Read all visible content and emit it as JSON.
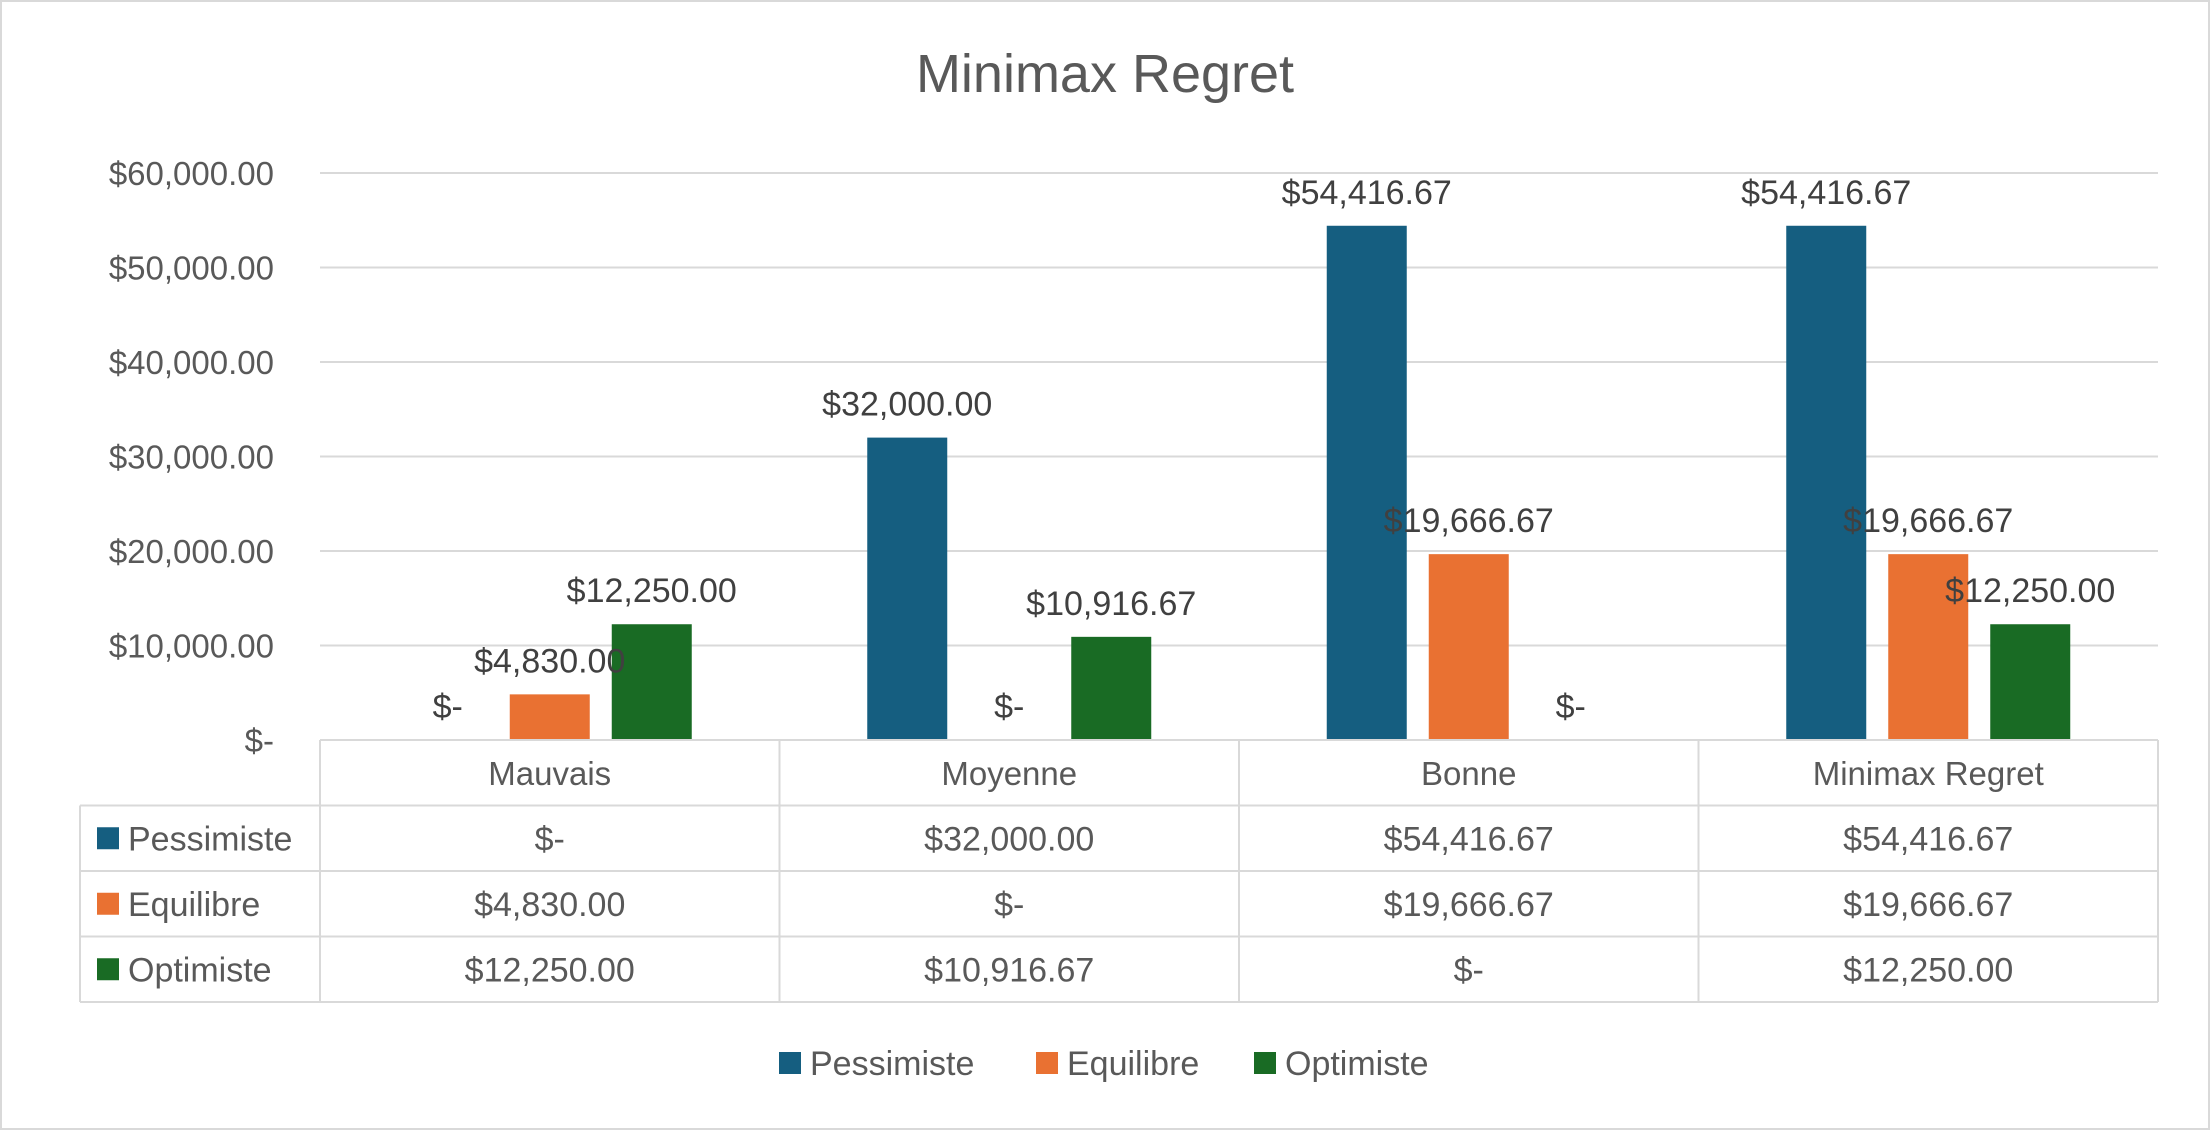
{
  "chart_data": {
    "type": "bar",
    "title": "Minimax Regret",
    "categories": [
      "Mauvais",
      "Moyenne",
      "Bonne",
      "Minimax Regret"
    ],
    "series": [
      {
        "name": "Pessimiste",
        "color": "#155e80",
        "values": [
          0,
          32000,
          54416.67,
          54416.67
        ],
        "labels": [
          "$-",
          "$32,000.00",
          "$54,416.67",
          "$54,416.67"
        ]
      },
      {
        "name": "Equilibre",
        "color": "#e97132",
        "values": [
          4830,
          0,
          19666.67,
          19666.67
        ],
        "labels": [
          "$4,830.00",
          "$-",
          "$19,666.67",
          "$19,666.67"
        ]
      },
      {
        "name": "Optimiste",
        "color": "#196b24",
        "values": [
          12250,
          10916.67,
          0,
          12250
        ],
        "labels": [
          "$12,250.00",
          "$10,916.67",
          "$-",
          "$12,250.00"
        ]
      }
    ],
    "ylim": [
      0,
      60000
    ],
    "yticks": [
      0,
      10000,
      20000,
      30000,
      40000,
      50000,
      60000
    ],
    "ytick_labels": [
      "$-",
      "$10,000.00",
      "$20,000.00",
      "$30,000.00",
      "$40,000.00",
      "$50,000.00",
      "$60,000.00"
    ],
    "grid": true,
    "legend_position": "bottom",
    "data_table": true
  }
}
